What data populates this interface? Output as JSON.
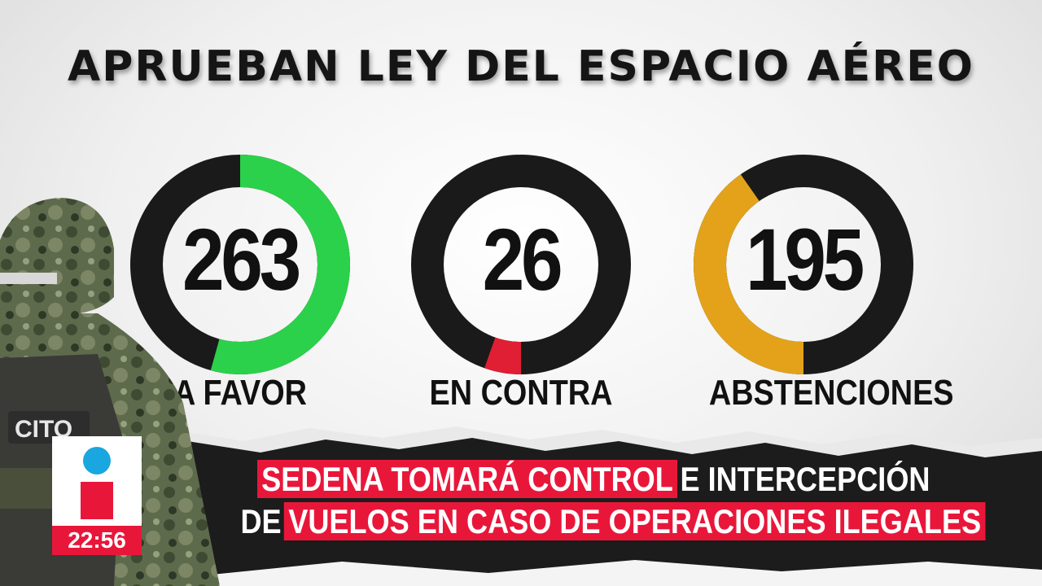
{
  "title": "APRUEBAN LEY DEL ESPACIO AÉREO",
  "results": [
    {
      "key": "favor",
      "value": "263",
      "label": "A FAVOR",
      "fraction": 0.543,
      "color": "#2bd14a"
    },
    {
      "key": "contra",
      "value": "26",
      "label": "EN CONTRA",
      "fraction": 0.054,
      "color": "#e01e34"
    },
    {
      "key": "abst",
      "value": "195",
      "label": "ABSTENCIONES",
      "fraction": 0.403,
      "color": "#e3a21a"
    }
  ],
  "soldier_patch_text": "CITO",
  "headline": {
    "line1_highlight": "SEDENA TOMARÁ CONTROL",
    "line1_rest": "E INTERCEPCIÓN",
    "line2_prefix": "DE",
    "line2_highlight": "VUELOS EN CASO DE OPERACIONES ILEGALES"
  },
  "clock": "22:56",
  "colors": {
    "accent": "#e8173a",
    "ring_track": "#1a1a1a",
    "logo_blue": "#1aa7e0"
  }
}
